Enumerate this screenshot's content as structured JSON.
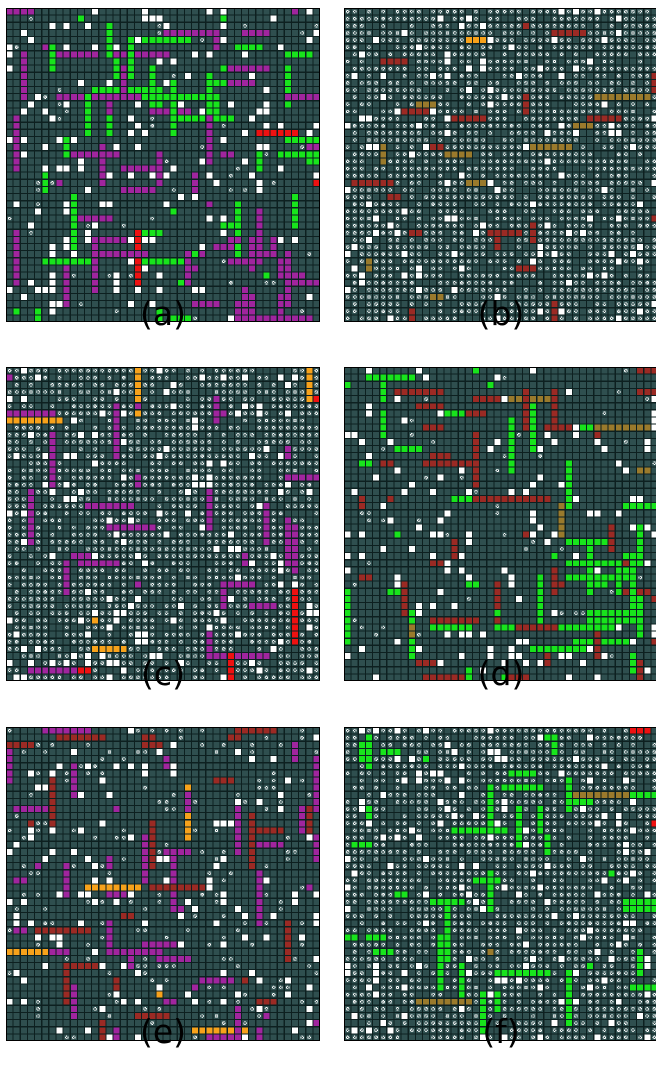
{
  "figure": {
    "panels": [
      {
        "id": "a",
        "label": "(a)",
        "seed": 11,
        "wall": 0.09,
        "dot": 0.04,
        "colors": [
          {
            "c": "#a0259e",
            "w": 0.5
          },
          {
            "c": "#18e41c",
            "w": 0.46
          },
          {
            "c": "#ee1111",
            "w": 0.04
          }
        ],
        "colorDensity": 0.36
      },
      {
        "id": "b",
        "label": "(b)",
        "seed": 23,
        "wall": 0.06,
        "dot": 0.74,
        "colors": [
          {
            "c": "#9b2a24",
            "w": 0.72
          },
          {
            "c": "#f7a21b",
            "w": 0.14
          },
          {
            "c": "#9a7a2c",
            "w": 0.14
          }
        ],
        "colorDensity": 0.09
      },
      {
        "id": "c",
        "label": "(c)",
        "seed": 37,
        "wall": 0.07,
        "dot": 0.7,
        "colors": [
          {
            "c": "#a0259e",
            "w": 0.78
          },
          {
            "c": "#f7a21b",
            "w": 0.14
          },
          {
            "c": "#ee1111",
            "w": 0.08
          }
        ],
        "colorDensity": 0.12
      },
      {
        "id": "d",
        "label": "(d)",
        "seed": 41,
        "wall": 0.08,
        "dot": 0.03,
        "colors": [
          {
            "c": "#18e41c",
            "w": 0.52
          },
          {
            "c": "#9b2a24",
            "w": 0.44
          },
          {
            "c": "#9a7a2c",
            "w": 0.04
          }
        ],
        "colorDensity": 0.3
      },
      {
        "id": "e",
        "label": "(e)",
        "seed": 53,
        "wall": 0.08,
        "dot": 0.12,
        "colors": [
          {
            "c": "#a0259e",
            "w": 0.5
          },
          {
            "c": "#9b2a24",
            "w": 0.44
          },
          {
            "c": "#f7a21b",
            "w": 0.06
          }
        ],
        "colorDensity": 0.24
      },
      {
        "id": "f",
        "label": "(f)",
        "seed": 67,
        "wall": 0.07,
        "dot": 0.7,
        "colors": [
          {
            "c": "#18e41c",
            "w": 0.82
          },
          {
            "c": "#ee1111",
            "w": 0.09
          },
          {
            "c": "#9a7a2c",
            "w": 0.09
          }
        ],
        "colorDensity": 0.14
      }
    ],
    "grid": {
      "size": 44
    },
    "palette": {
      "background": "#ffffff",
      "cell": "#2f4f4f",
      "gridline": "#0d2020",
      "dotted_cell": "#2f4f4f",
      "empty": "#ffffff"
    }
  }
}
